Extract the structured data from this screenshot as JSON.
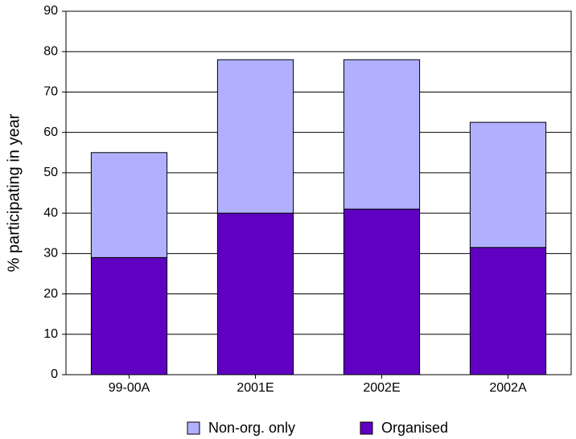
{
  "chart_data": {
    "type": "stacked-bar",
    "y_label": "% participating in year",
    "categories": [
      "99-00A",
      "2001E",
      "2002E",
      "2002A"
    ],
    "series": [
      {
        "name": "Non-org. only",
        "color": "#b0b0ff",
        "values": [
          26,
          38,
          37,
          31
        ]
      },
      {
        "name": "Organised",
        "color": "#6000c0",
        "values": [
          29,
          40,
          41,
          31.5
        ]
      }
    ],
    "ylim": [
      0,
      90
    ],
    "yticks": [
      0,
      10,
      20,
      30,
      40,
      50,
      60,
      70,
      80,
      90
    ],
    "grid": true,
    "legend": "bottom"
  }
}
